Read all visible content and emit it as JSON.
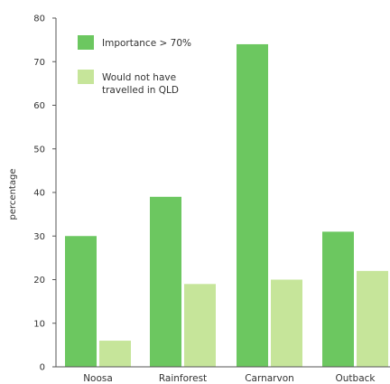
{
  "chart_data": {
    "type": "bar",
    "title": "",
    "xlabel": "",
    "ylabel": "percentage",
    "ylim": [
      0,
      80
    ],
    "yticks": [
      0,
      10,
      20,
      30,
      40,
      50,
      60,
      70,
      80
    ],
    "grid": false,
    "legend_position": "top-left",
    "categories": [
      "Noosa",
      "Rainforest",
      "Carnarvon",
      "Outback"
    ],
    "series": [
      {
        "name": "Importance > 70%",
        "color": "#6cc760",
        "values": [
          30,
          39,
          74,
          31
        ]
      },
      {
        "name": "Would not have travelled in QLD",
        "color": "#c6e59a",
        "values": [
          6,
          19,
          20,
          22
        ]
      }
    ]
  },
  "legend": {
    "items": [
      {
        "lines": [
          "Importance > 70%"
        ]
      },
      {
        "lines": [
          "Would not have",
          "travelled in QLD"
        ]
      }
    ]
  }
}
